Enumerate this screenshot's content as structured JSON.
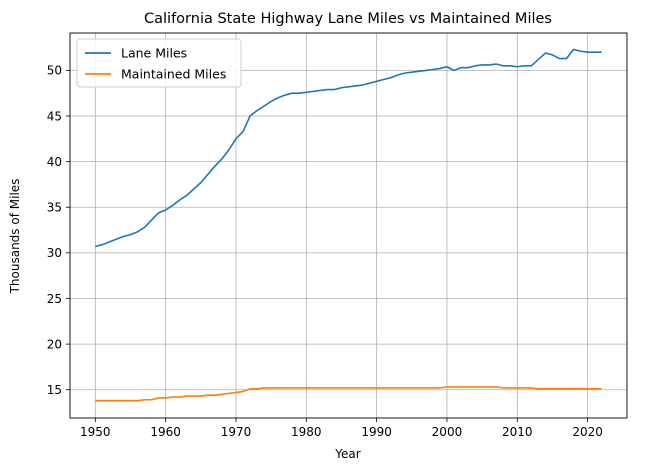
{
  "chart_data": {
    "type": "line",
    "title": "California State Highway Lane Miles vs Maintained Miles",
    "xlabel": "Year",
    "ylabel": "Thousands of Miles",
    "xlim": [
      1946.4,
      2025.6
    ],
    "ylim": [
      11.9,
      54.1
    ],
    "xticks": [
      1950,
      1960,
      1970,
      1980,
      1990,
      2000,
      2010,
      2020
    ],
    "yticks": [
      15,
      20,
      25,
      30,
      35,
      40,
      45,
      50
    ],
    "grid": true,
    "legend": "upper-left",
    "x": [
      1950,
      1951,
      1952,
      1953,
      1954,
      1955,
      1956,
      1957,
      1958,
      1959,
      1960,
      1961,
      1962,
      1963,
      1964,
      1965,
      1966,
      1967,
      1968,
      1969,
      1970,
      1971,
      1972,
      1973,
      1974,
      1975,
      1976,
      1977,
      1978,
      1979,
      1980,
      1981,
      1982,
      1983,
      1984,
      1985,
      1986,
      1987,
      1988,
      1989,
      1990,
      1991,
      1992,
      1993,
      1994,
      1995,
      1996,
      1997,
      1998,
      1999,
      2000,
      2001,
      2002,
      2003,
      2004,
      2005,
      2006,
      2007,
      2008,
      2009,
      2010,
      2011,
      2012,
      2013,
      2014,
      2015,
      2016,
      2017,
      2018,
      2019,
      2020,
      2021,
      2022
    ],
    "series": [
      {
        "name": "Lane Miles",
        "color": "#1f77b4",
        "values": [
          30.7,
          30.9,
          31.2,
          31.5,
          31.8,
          32.0,
          32.3,
          32.8,
          33.6,
          34.4,
          34.7,
          35.2,
          35.8,
          36.3,
          37.0,
          37.7,
          38.6,
          39.5,
          40.3,
          41.3,
          42.5,
          43.3,
          45.0,
          45.6,
          46.1,
          46.6,
          47.0,
          47.3,
          47.5,
          47.5,
          47.6,
          47.7,
          47.8,
          47.9,
          47.9,
          48.1,
          48.2,
          48.3,
          48.4,
          48.6,
          48.8,
          49.0,
          49.2,
          49.5,
          49.7,
          49.8,
          49.9,
          50.0,
          50.1,
          50.2,
          50.4,
          50.0,
          50.3,
          50.3,
          50.5,
          50.6,
          50.6,
          50.7,
          50.5,
          50.5,
          50.4,
          50.5,
          50.5,
          51.2,
          51.9,
          51.7,
          51.3,
          51.3,
          52.3,
          52.1,
          52.0,
          52.0,
          52.0
        ]
      },
      {
        "name": "Maintained Miles",
        "color": "#ff7f0e",
        "values": [
          13.8,
          13.8,
          13.8,
          13.8,
          13.8,
          13.8,
          13.8,
          13.9,
          13.9,
          14.1,
          14.1,
          14.2,
          14.2,
          14.3,
          14.3,
          14.3,
          14.4,
          14.4,
          14.5,
          14.6,
          14.7,
          14.8,
          15.1,
          15.1,
          15.2,
          15.2,
          15.2,
          15.2,
          15.2,
          15.2,
          15.2,
          15.2,
          15.2,
          15.2,
          15.2,
          15.2,
          15.2,
          15.2,
          15.2,
          15.2,
          15.2,
          15.2,
          15.2,
          15.2,
          15.2,
          15.2,
          15.2,
          15.2,
          15.2,
          15.2,
          15.3,
          15.3,
          15.3,
          15.3,
          15.3,
          15.3,
          15.3,
          15.3,
          15.2,
          15.2,
          15.2,
          15.2,
          15.2,
          15.1,
          15.1,
          15.1,
          15.1,
          15.1,
          15.1,
          15.1,
          15.1,
          15.1,
          15.1
        ]
      }
    ]
  }
}
